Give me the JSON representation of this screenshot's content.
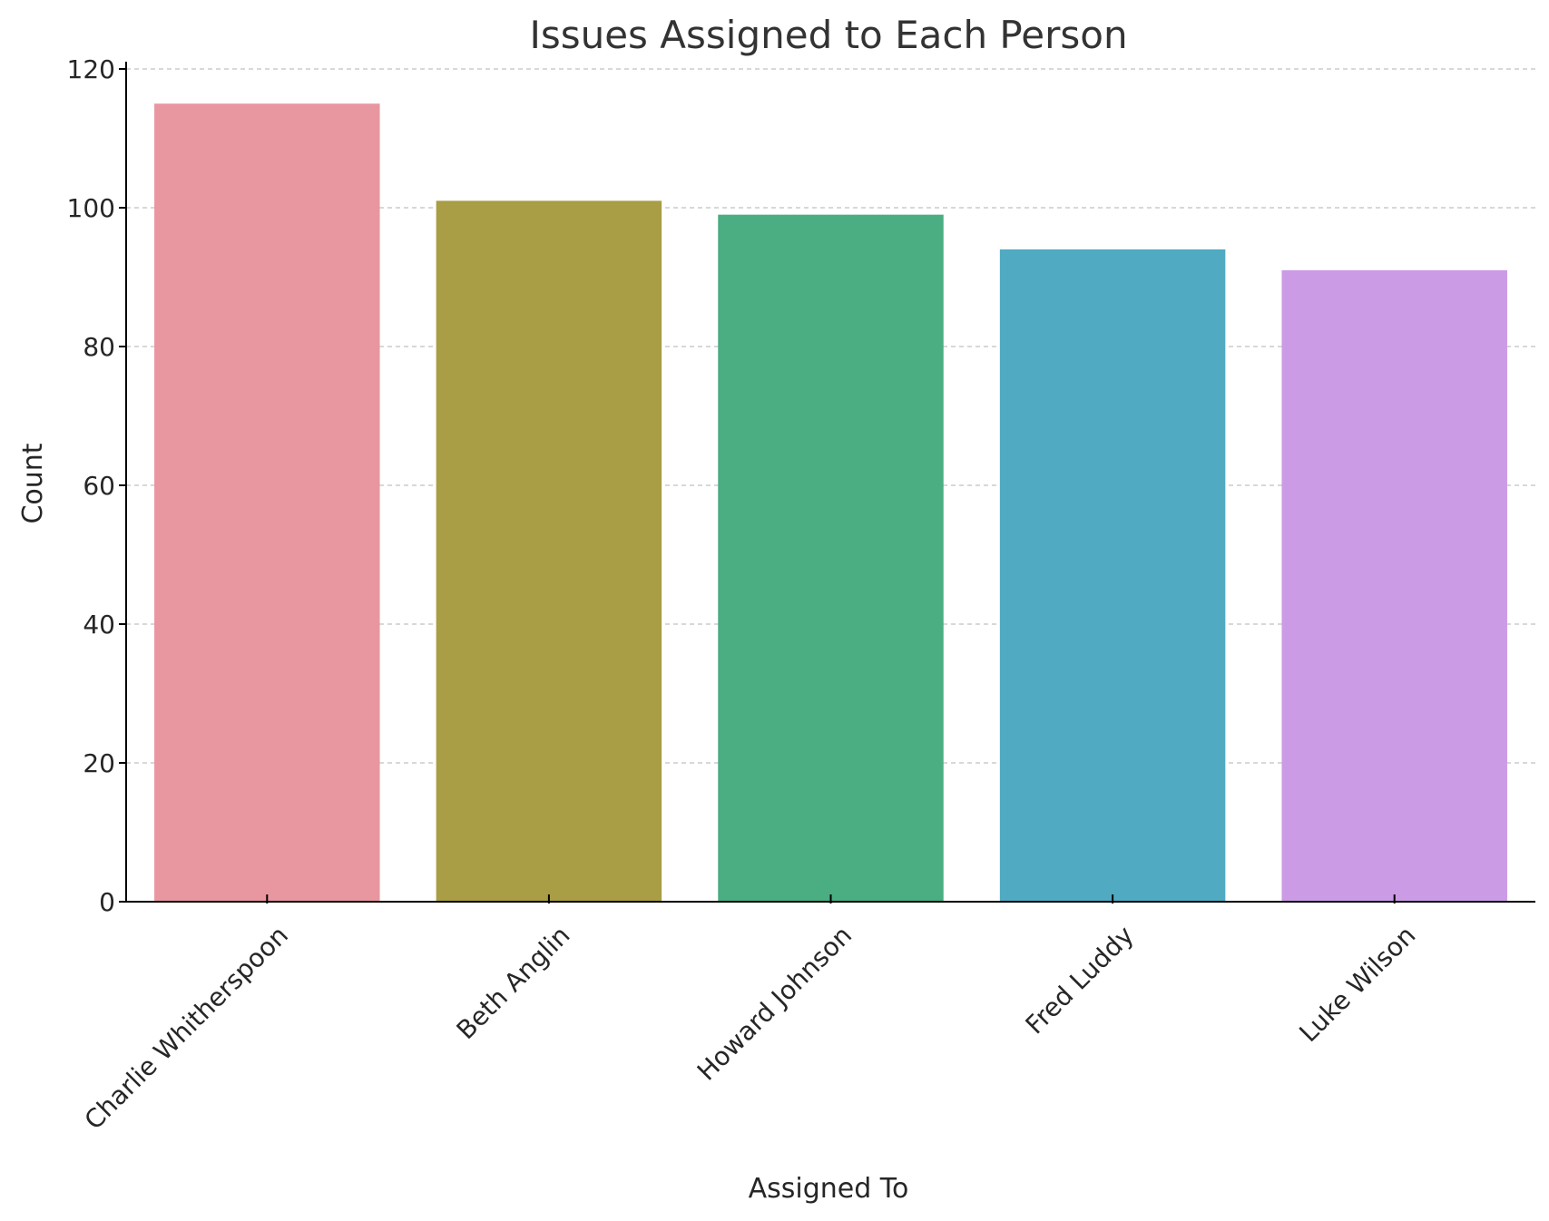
{
  "chart_data": {
    "type": "bar",
    "title": "Issues Assigned to Each Person",
    "xlabel": "Assigned To",
    "ylabel": "Count",
    "categories": [
      "Charlie Whitherspoon",
      "Beth Anglin",
      "Howard Johnson",
      "Fred Luddy",
      "Luke Wilson"
    ],
    "values": [
      115,
      101,
      99,
      94,
      91
    ],
    "colors": [
      "#e8969f",
      "#a99d45",
      "#4bad82",
      "#50aac2",
      "#cb9be5"
    ],
    "ylim": [
      0,
      120
    ],
    "yticks": [
      0,
      20,
      40,
      60,
      80,
      100,
      120
    ],
    "grid": "horizontal-dashed",
    "legend": "none"
  }
}
